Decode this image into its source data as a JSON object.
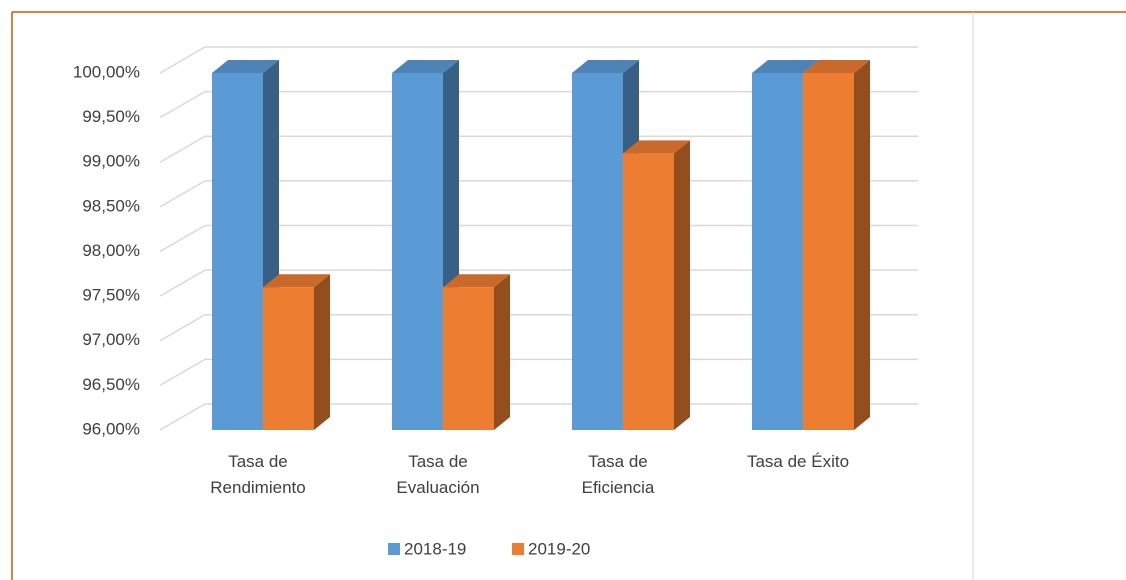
{
  "chart_data": {
    "type": "bar3d",
    "categories": [
      "Tasa de Rendimiento",
      "Tasa de Evaluación",
      "Tasa de Eficiencia",
      "Tasa de Éxito"
    ],
    "series": [
      {
        "name": "2018-19",
        "color": "#5b9bd5",
        "values": [
          100,
          100,
          100,
          100
        ]
      },
      {
        "name": "2019-20",
        "color": "#ed7d31",
        "values": [
          97.6,
          97.6,
          99.1,
          100
        ]
      }
    ],
    "ylim": [
      96,
      100
    ],
    "yticks": [
      {
        "value": 96,
        "label": "96,00%"
      },
      {
        "value": 96.5,
        "label": "96,50%"
      },
      {
        "value": 97,
        "label": "97,00%"
      },
      {
        "value": 97.5,
        "label": "97,50%"
      },
      {
        "value": 98,
        "label": "98,00%"
      },
      {
        "value": 98.5,
        "label": "98,50%"
      },
      {
        "value": 99,
        "label": "99,00%"
      },
      {
        "value": 99.5,
        "label": "99,50%"
      },
      {
        "value": 100,
        "label": "100,00%"
      }
    ],
    "grid": true,
    "legend": "bottom"
  }
}
